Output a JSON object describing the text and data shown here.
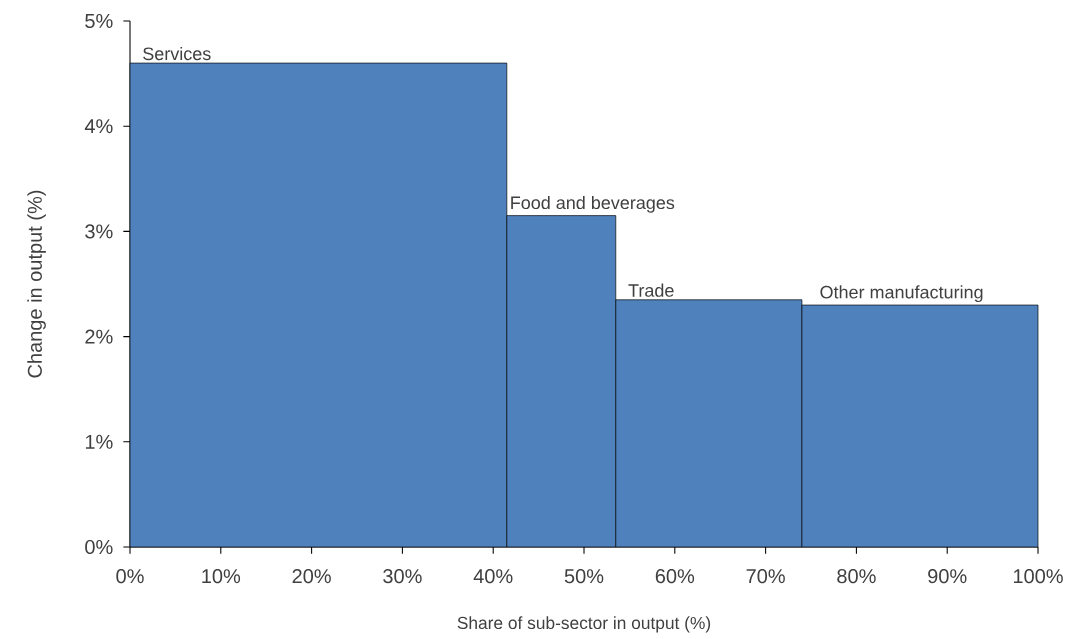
{
  "chart_data": {
    "type": "histogram",
    "xlabel": "Share of sub-sector in output (%)",
    "ylabel": "Change in output (%)",
    "bins": [
      0,
      41.5,
      53.5,
      74,
      100
    ],
    "values": [
      4.6,
      3.15,
      2.35,
      2.3
    ],
    "color": "#4f81bd",
    "xlim": [
      0,
      100
    ],
    "ylim": [
      0,
      5
    ],
    "xticks": [
      {
        "value": 0,
        "label": "0%"
      },
      {
        "value": 10,
        "label": "10%"
      },
      {
        "value": 20,
        "label": "20%"
      },
      {
        "value": 30,
        "label": "30%"
      },
      {
        "value": 40,
        "label": "40%"
      },
      {
        "value": 50,
        "label": "50%"
      },
      {
        "value": 60,
        "label": "60%"
      },
      {
        "value": 70,
        "label": "70%"
      },
      {
        "value": 80,
        "label": "80%"
      },
      {
        "value": 90,
        "label": "90%"
      },
      {
        "value": 100,
        "label": "100%"
      }
    ],
    "yticks": [
      {
        "value": 0,
        "label": "0%"
      },
      {
        "value": 1,
        "label": "1%"
      },
      {
        "value": 2,
        "label": "2%"
      },
      {
        "value": 3,
        "label": "3%"
      },
      {
        "value": 4,
        "label": "4%"
      },
      {
        "value": 5,
        "label": "5%"
      }
    ],
    "annotations": [
      "Services",
      "Food and beverages",
      "Trade",
      "Other manufacturing"
    ]
  }
}
